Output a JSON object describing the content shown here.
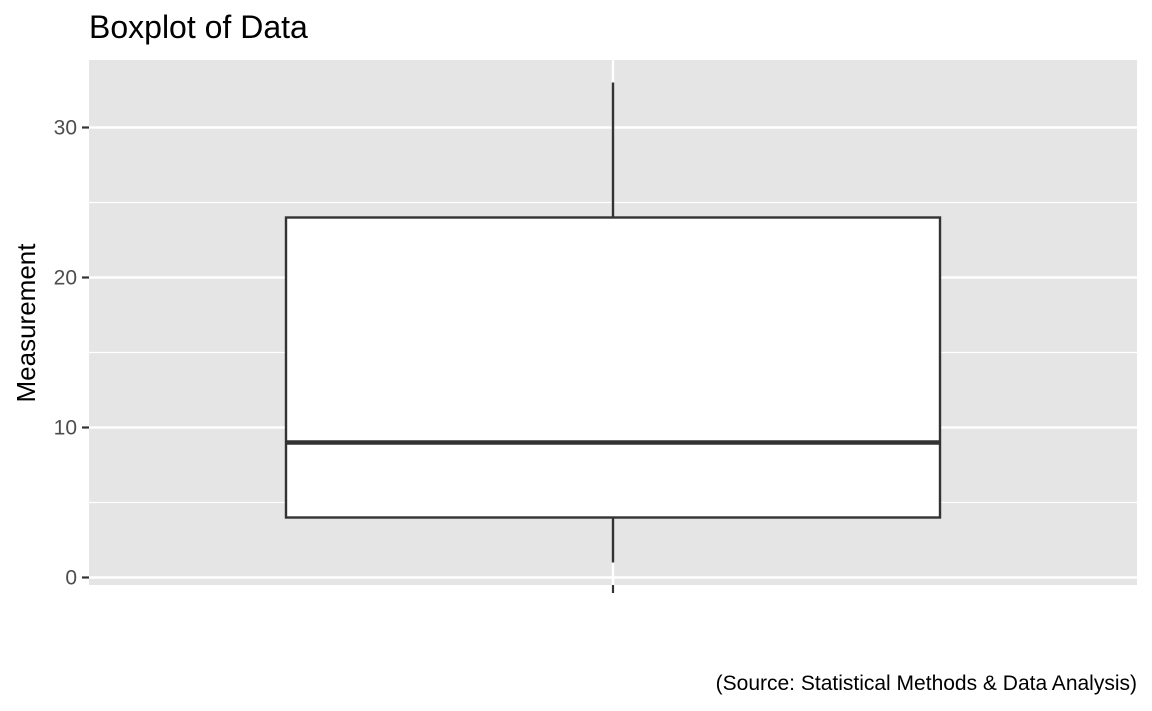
{
  "chart_data": {
    "type": "box",
    "title": "Boxplot of Data",
    "xlabel": "",
    "ylabel": "Measurement",
    "caption": "(Source: Statistical Methods & Data Analysis)",
    "ylim": [
      -0.5,
      34.5
    ],
    "yticks": [
      0,
      10,
      20,
      30
    ],
    "ytick_labels": [
      "0",
      "10",
      "20",
      "30"
    ],
    "grid": true,
    "box": {
      "min": 1,
      "q1": 4,
      "median": 9,
      "q3": 24,
      "max": 33
    },
    "colors": {
      "panel_background": "#e5e5e5",
      "grid": "#ffffff",
      "box_fill": "#ffffff",
      "box_stroke": "#333333",
      "tick_text": "#4d4d4d"
    }
  }
}
